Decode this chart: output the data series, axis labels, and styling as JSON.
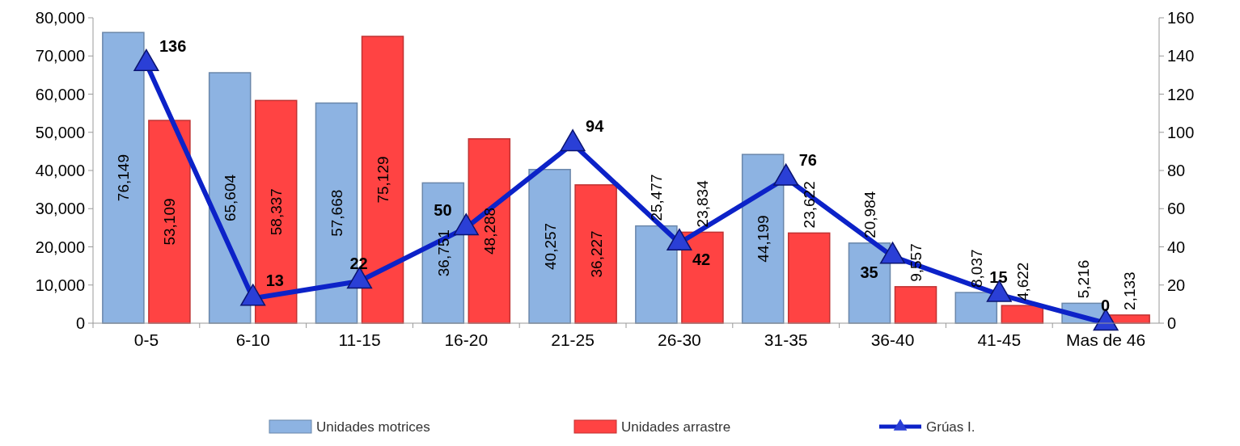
{
  "chart_data": {
    "type": "bar",
    "categories": [
      "0-5",
      "6-10",
      "11-15",
      "16-20",
      "21-25",
      "26-30",
      "31-35",
      "36-40",
      "41-45",
      "Mas de 46"
    ],
    "series": [
      {
        "name": "Unidades motrices",
        "color": "#8db3e2",
        "values": [
          76149,
          65604,
          57668,
          36751,
          40257,
          25477,
          44199,
          20984,
          8037,
          5216
        ],
        "value_labels": [
          "76,149",
          "65,604",
          "57,668",
          "36,751",
          "40,257",
          "25,477",
          "44,199",
          "20,984",
          "8,037",
          "5,216"
        ]
      },
      {
        "name": "Unidades arrastre",
        "color": "#ff4343",
        "values": [
          53109,
          58337,
          75129,
          48288,
          36227,
          23834,
          23622,
          9557,
          4622,
          2133
        ],
        "value_labels": [
          "53,109",
          "58,337",
          "75,129",
          "48,288",
          "36,227",
          "23,834",
          "23,622",
          "9,557",
          "4,622",
          "2,133"
        ]
      },
      {
        "name": "Grúas I.",
        "type": "line",
        "axis": "y2",
        "color": "#0c22c8",
        "marker": "triangle",
        "values": [
          136,
          13,
          22,
          50,
          94,
          42,
          76,
          35,
          15,
          0
        ],
        "value_labels": [
          "136",
          "13",
          "22",
          "50",
          "94",
          "42",
          "76",
          "35",
          "15",
          "0"
        ]
      }
    ],
    "ylim": [
      0,
      80000
    ],
    "yticks": [
      {
        "value": 0,
        "label": "0"
      },
      {
        "value": 10000,
        "label": "10,000"
      },
      {
        "value": 20000,
        "label": "20,000"
      },
      {
        "value": 30000,
        "label": "30,000"
      },
      {
        "value": 40000,
        "label": "40,000"
      },
      {
        "value": 50000,
        "label": "50,000"
      },
      {
        "value": 60000,
        "label": "60,000"
      },
      {
        "value": 70000,
        "label": "70,000"
      },
      {
        "value": 80000,
        "label": "80,000"
      }
    ],
    "y2lim": [
      0,
      160
    ],
    "y2ticks": [
      0,
      20,
      40,
      60,
      80,
      100,
      120,
      140,
      160
    ],
    "legend": "bottom",
    "grid": false
  }
}
